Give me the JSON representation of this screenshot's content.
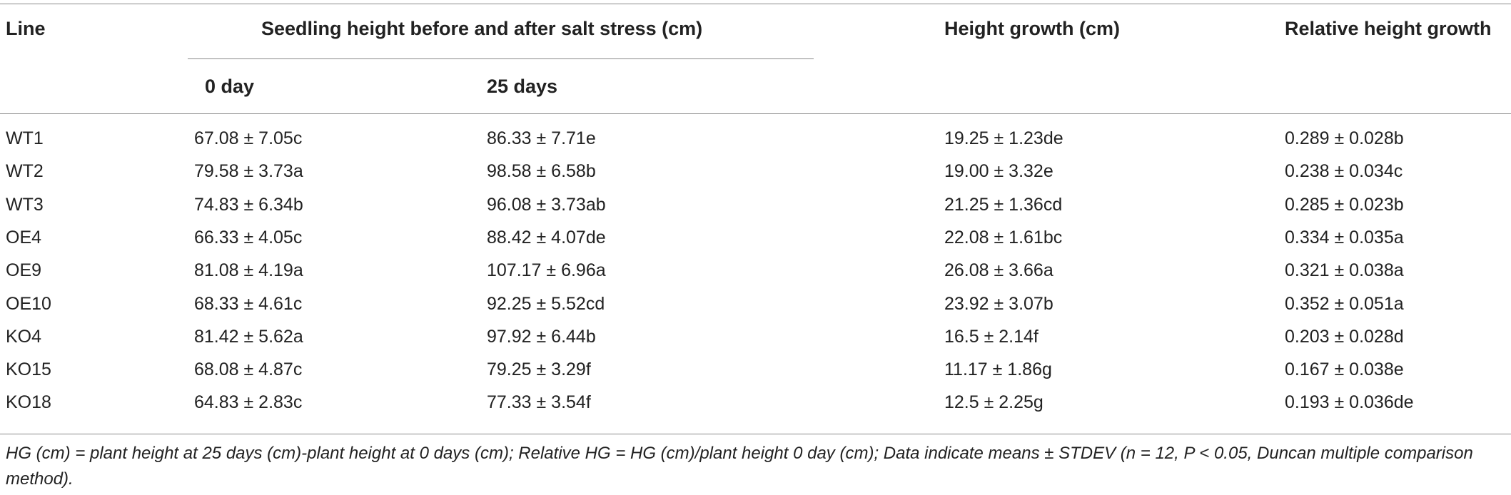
{
  "table": {
    "headers": {
      "line": "Line",
      "seedling_group": "Seedling height before and after salt stress (cm)",
      "day0": "0 day",
      "day25": "25 days",
      "height_growth": "Height growth (cm)",
      "relative_growth": "Relative height growth"
    },
    "rows": [
      {
        "line": "WT1",
        "day0": "67.08 ± 7.05c",
        "day25": "86.33 ± 7.71e",
        "growth": "19.25 ± 1.23de",
        "relative": "0.289 ± 0.028b"
      },
      {
        "line": "WT2",
        "day0": "79.58 ± 3.73a",
        "day25": "98.58 ± 6.58b",
        "growth": "19.00 ± 3.32e",
        "relative": "0.238 ± 0.034c"
      },
      {
        "line": "WT3",
        "day0": "74.83 ± 6.34b",
        "day25": "96.08 ± 3.73ab",
        "growth": "21.25 ± 1.36cd",
        "relative": "0.285 ± 0.023b"
      },
      {
        "line": "OE4",
        "day0": "66.33 ± 4.05c",
        "day25": "88.42 ± 4.07de",
        "growth": "22.08 ± 1.61bc",
        "relative": "0.334 ± 0.035a"
      },
      {
        "line": "OE9",
        "day0": "81.08 ± 4.19a",
        "day25": "107.17 ± 6.96a",
        "growth": "26.08 ± 3.66a",
        "relative": "0.321 ± 0.038a"
      },
      {
        "line": "OE10",
        "day0": "68.33 ± 4.61c",
        "day25": "92.25 ± 5.52cd",
        "growth": "23.92 ± 3.07b",
        "relative": "0.352 ± 0.051a"
      },
      {
        "line": "KO4",
        "day0": "81.42 ± 5.62a",
        "day25": "97.92 ± 6.44b",
        "growth": "16.5 ± 2.14f",
        "relative": "0.203 ± 0.028d"
      },
      {
        "line": "KO15",
        "day0": "68.08 ± 4.87c",
        "day25": "79.25 ± 3.29f",
        "growth": "11.17 ± 1.86g",
        "relative": "0.167 ± 0.038e"
      },
      {
        "line": "KO18",
        "day0": "64.83 ± 2.83c",
        "day25": "77.33 ± 3.54f",
        "growth": "12.5 ± 2.25g",
        "relative": "0.193 ± 0.036de"
      }
    ],
    "footnote": "HG (cm) = plant height at 25 days (cm)-plant height at 0 days (cm); Relative HG = HG (cm)/plant height 0 day (cm); Data indicate means ± STDEV (n = 12, P < 0.05, Duncan multiple comparison method)."
  }
}
